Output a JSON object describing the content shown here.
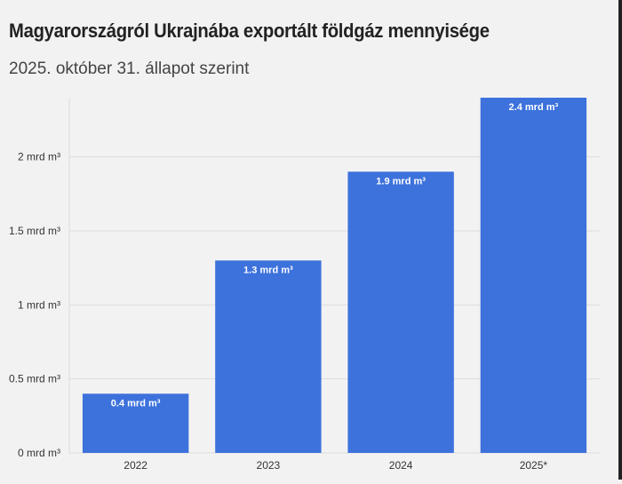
{
  "header": {
    "title": "Magyarországról Ukrajnába exportált földgáz mennyisége",
    "subtitle": "2025. október 31. állapot szerint"
  },
  "colors": {
    "bar": "#3d72dc",
    "grid": "#dcdcdc",
    "axis_text": "#333333",
    "label_text": "#ffffff"
  },
  "chart_data": {
    "type": "bar",
    "title": "Magyarországról Ukrajnába exportált földgáz mennyisége",
    "subtitle": "2025. október 31. állapot szerint",
    "categories": [
      "2022",
      "2023",
      "2024",
      "2025*"
    ],
    "values": [
      0.4,
      1.3,
      1.9,
      2.4
    ],
    "data_labels": [
      "0.4 mrd m³",
      "1.3 mrd m³",
      "1.9 mrd m³",
      "2.4 mrd m³"
    ],
    "xlabel": "",
    "ylabel": "",
    "ylim": [
      0,
      2.4
    ],
    "yticks": [
      0,
      0.5,
      1,
      1.5,
      2
    ],
    "ytick_labels": [
      "0 mrd m³",
      "0.5 mrd m³",
      "1 mrd m³",
      "1.5 mrd m³",
      "2 mrd m³"
    ],
    "grid": true
  }
}
